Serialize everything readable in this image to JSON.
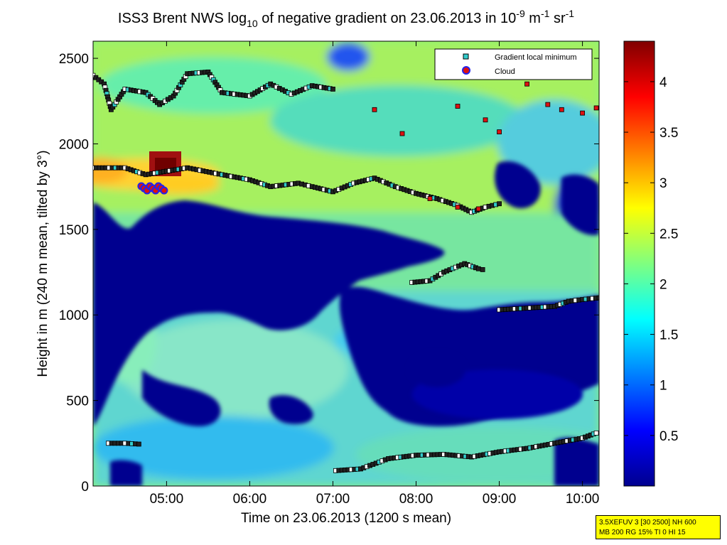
{
  "title": {
    "prefix": "ISS3 Brent NWS log",
    "log_base": "10",
    "middle": " of negative gradient on 23.06.2013 in 10",
    "exp1": "-9",
    "unit1": " m",
    "exp2": "-1",
    "unit2": " sr",
    "exp3": "-1"
  },
  "info_box": {
    "line1": "3.5XEFUV 3 [30 2500] NH 600",
    "line2": "MB 200 RG 15% TI 0 HI 15"
  },
  "chart_data": {
    "type": "heatmap",
    "xlabel": "Time on 23.06.2013 (1200 s mean)",
    "ylabel": "Height in m (240 m mean, tilted by 3°)",
    "xlim": [
      "04:07",
      "10:12"
    ],
    "ylim": [
      0,
      2600
    ],
    "x_ticks": [
      "05:00",
      "06:00",
      "07:00",
      "08:00",
      "09:00",
      "10:00"
    ],
    "y_ticks": [
      0,
      500,
      1000,
      1500,
      2000,
      2500
    ],
    "colorbar": {
      "colormap": "jet",
      "range": [
        0,
        4.4
      ],
      "ticks": [
        0.5,
        1,
        1.5,
        2,
        2.5,
        3,
        3.5,
        4
      ]
    },
    "legend": {
      "position": "top-right",
      "entries": [
        {
          "label": "Gradient local minimum",
          "marker": "square",
          "color": "#33cccc"
        },
        {
          "label": "Cloud",
          "marker": "circle",
          "color": "#dd1111",
          "edge": "#2222ee"
        }
      ]
    },
    "gradient_minimum_series": [
      {
        "name": "low-layer-a",
        "points": [
          [
            "04:18",
            250
          ],
          [
            "04:30",
            250
          ],
          [
            "04:40",
            245
          ]
        ]
      },
      {
        "name": "low-layer-b",
        "points": [
          [
            "07:02",
            90
          ],
          [
            "07:20",
            100
          ],
          [
            "07:40",
            160
          ],
          [
            "08:00",
            180
          ],
          [
            "08:20",
            185
          ],
          [
            "08:40",
            170
          ],
          [
            "09:00",
            200
          ],
          [
            "09:20",
            220
          ],
          [
            "09:40",
            250
          ],
          [
            "10:00",
            280
          ],
          [
            "10:10",
            310
          ]
        ]
      },
      {
        "name": "mid-layer-a",
        "points": [
          [
            "07:57",
            1190
          ],
          [
            "08:10",
            1200
          ],
          [
            "08:20",
            1250
          ],
          [
            "08:35",
            1300
          ],
          [
            "08:45",
            1270
          ],
          [
            "08:48",
            1265
          ]
        ]
      },
      {
        "name": "mid-layer-b",
        "points": [
          [
            "09:00",
            1030
          ],
          [
            "09:20",
            1040
          ],
          [
            "09:40",
            1050
          ],
          [
            "09:50",
            1080
          ],
          [
            "10:00",
            1090
          ],
          [
            "10:12",
            1100
          ]
        ]
      },
      {
        "name": "main-layer",
        "points": [
          [
            "04:07",
            1860
          ],
          [
            "04:30",
            1860
          ],
          [
            "04:45",
            1820
          ],
          [
            "05:00",
            1840
          ],
          [
            "05:15",
            1860
          ],
          [
            "05:40",
            1820
          ],
          [
            "06:00",
            1790
          ],
          [
            "06:15",
            1750
          ],
          [
            "06:35",
            1770
          ],
          [
            "06:45",
            1750
          ],
          [
            "07:00",
            1720
          ],
          [
            "07:15",
            1770
          ],
          [
            "07:30",
            1800
          ],
          [
            "07:45",
            1750
          ],
          [
            "08:00",
            1710
          ],
          [
            "08:15",
            1680
          ],
          [
            "08:30",
            1640
          ],
          [
            "08:40",
            1600
          ],
          [
            "08:50",
            1630
          ],
          [
            "09:00",
            1650
          ]
        ]
      },
      {
        "name": "upper-layer",
        "points": [
          [
            "04:07",
            2400
          ],
          [
            "04:15",
            2350
          ],
          [
            "04:20",
            2200
          ],
          [
            "04:30",
            2320
          ],
          [
            "04:45",
            2300
          ],
          [
            "04:55",
            2230
          ],
          [
            "05:05",
            2280
          ],
          [
            "05:15",
            2410
          ],
          [
            "05:30",
            2420
          ],
          [
            "05:40",
            2300
          ],
          [
            "06:00",
            2280
          ],
          [
            "06:15",
            2350
          ],
          [
            "06:30",
            2290
          ],
          [
            "06:45",
            2340
          ],
          [
            "07:00",
            2320
          ]
        ]
      }
    ],
    "cloud_series": [
      {
        "name": "upper-clouds",
        "points": [
          [
            "07:30",
            2200
          ],
          [
            "07:50",
            2060
          ],
          [
            "08:30",
            2220
          ],
          [
            "08:50",
            2140
          ],
          [
            "09:00",
            2070
          ],
          [
            "09:20",
            2350
          ],
          [
            "09:35",
            2230
          ],
          [
            "09:45",
            2200
          ],
          [
            "10:00",
            2180
          ],
          [
            "10:10",
            2210
          ]
        ]
      },
      {
        "name": "main-layer-clouds",
        "points": [
          [
            "08:10",
            1680
          ],
          [
            "08:30",
            1630
          ],
          [
            "08:45",
            1620
          ]
        ]
      }
    ]
  }
}
